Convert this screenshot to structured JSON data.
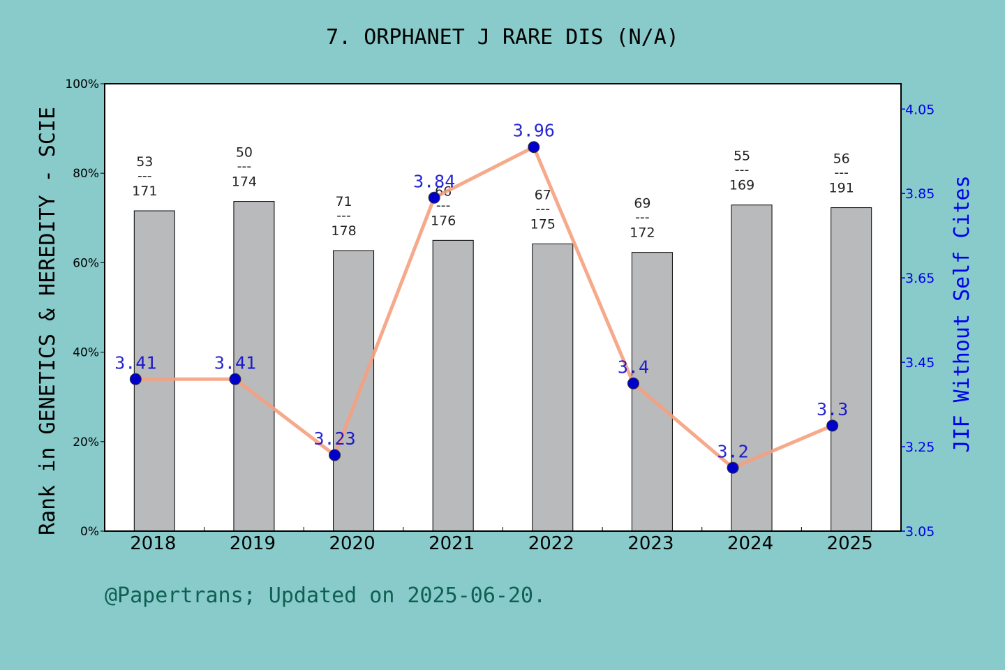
{
  "chart_data": {
    "type": "bar",
    "title": "7. ORPHANET J RARE DIS (N/A)",
    "categories": [
      "2018",
      "2019",
      "2020",
      "2021",
      "2022",
      "2023",
      "2024",
      "2025"
    ],
    "left_axis": {
      "label": "Rank in GENETICS & HEREDITY - SCIE",
      "ticks": [
        "0%",
        "20%",
        "40%",
        "60%",
        "80%",
        "100%"
      ],
      "range": [
        0,
        100
      ]
    },
    "right_axis": {
      "label": "JIF Without Self Cites",
      "ticks": [
        "3.05",
        "3.25",
        "3.45",
        "3.65",
        "3.85",
        "4.05"
      ],
      "range": [
        3.05,
        4.11
      ]
    },
    "series": [
      {
        "kind": "bar",
        "values": [
          71.6,
          73.7,
          62.7,
          65.0,
          64.2,
          62.3,
          72.9,
          72.3
        ],
        "rank_labels": [
          {
            "rank": "53",
            "sep": "---",
            "total": "171"
          },
          {
            "rank": "50",
            "sep": "---",
            "total": "174"
          },
          {
            "rank": "71",
            "sep": "---",
            "total": "178"
          },
          {
            "rank": "66",
            "sep": "---",
            "total": "176"
          },
          {
            "rank": "67",
            "sep": "---",
            "total": "175"
          },
          {
            "rank": "69",
            "sep": "---",
            "total": "172"
          },
          {
            "rank": "55",
            "sep": "---",
            "total": "169"
          },
          {
            "rank": "56",
            "sep": "---",
            "total": "191"
          }
        ],
        "color": "#b9babc"
      },
      {
        "kind": "line",
        "values": [
          3.41,
          3.41,
          3.23,
          3.84,
          3.96,
          3.4,
          3.2,
          3.3
        ],
        "labels": [
          "3.41",
          "3.41",
          "3.23",
          "3.84",
          "3.96",
          "3.4",
          "3.2",
          "3.3"
        ],
        "line_color": "#f5a07e",
        "marker_color": "#0000cc"
      }
    ],
    "grid": false
  },
  "footer": "@Papertrans; Updated on 2025-06-20."
}
